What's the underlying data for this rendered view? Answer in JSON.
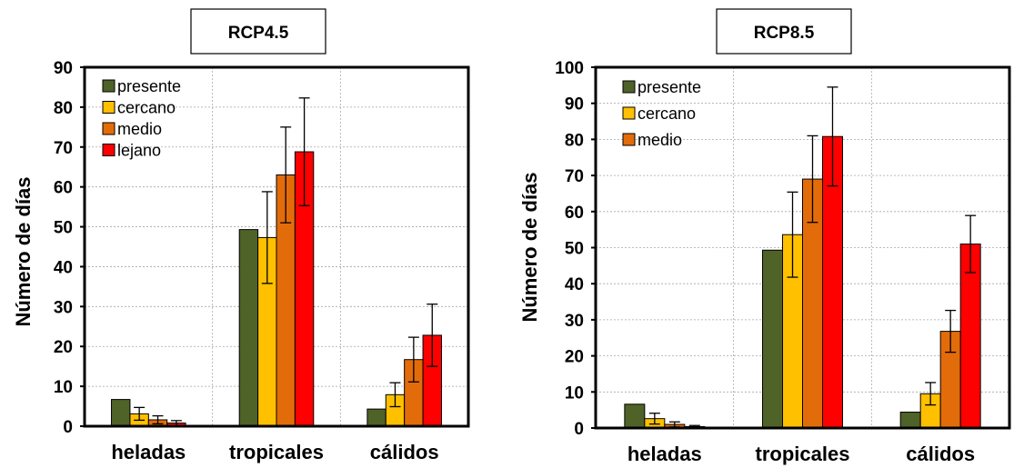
{
  "chart_data": [
    {
      "type": "bar",
      "title": "RCP4.5",
      "ylabel": "Número de días",
      "xlabel": "",
      "categories": [
        "heladas",
        "tropicales",
        "cálidos"
      ],
      "ylim": [
        0,
        90
      ],
      "yticks": [
        0,
        10,
        20,
        30,
        40,
        50,
        60,
        70,
        80,
        90
      ],
      "grid": true,
      "legend_position": "top-left",
      "series": [
        {
          "name": "presente",
          "color": "#4f6228",
          "values": [
            6.7,
            49.3,
            4.3
          ],
          "err": [
            null,
            null,
            null
          ]
        },
        {
          "name": "cercano",
          "color": "#ffc000",
          "values": [
            3.1,
            47.3,
            7.9
          ],
          "err": [
            1.6,
            11.5,
            3.0
          ]
        },
        {
          "name": "medio",
          "color": "#e36c0a",
          "values": [
            1.6,
            63.0,
            16.7
          ],
          "err": [
            1.0,
            12.0,
            5.6
          ]
        },
        {
          "name": "lejano",
          "color": "#ff0000",
          "values": [
            0.8,
            68.8,
            22.8
          ],
          "err": [
            0.6,
            13.5,
            7.8
          ]
        }
      ]
    },
    {
      "type": "bar",
      "title": "RCP8.5",
      "ylabel": "Número de días",
      "xlabel": "",
      "categories": [
        "heladas",
        "tropicales",
        "cálidos"
      ],
      "ylim": [
        0,
        100
      ],
      "yticks": [
        0,
        10,
        20,
        30,
        40,
        50,
        60,
        70,
        80,
        90,
        100
      ],
      "grid": true,
      "legend_position": "top-left",
      "series": [
        {
          "name": "presente",
          "color": "#4f6228",
          "values": [
            6.6,
            49.3,
            4.4
          ],
          "err": [
            null,
            null,
            null
          ],
          "legend": true
        },
        {
          "name": "cercano",
          "color": "#ffc000",
          "values": [
            2.6,
            53.6,
            9.5
          ],
          "err": [
            1.5,
            11.8,
            3.1
          ],
          "legend": true
        },
        {
          "name": "medio",
          "color": "#e36c0a",
          "values": [
            1.0,
            69.0,
            26.8
          ],
          "err": [
            0.7,
            12.0,
            5.8
          ],
          "legend": true
        },
        {
          "name": "",
          "color": "#ff0000",
          "values": [
            0.4,
            80.8,
            51.0
          ],
          "err": [
            0.3,
            13.7,
            7.9
          ],
          "legend": false
        }
      ]
    }
  ]
}
